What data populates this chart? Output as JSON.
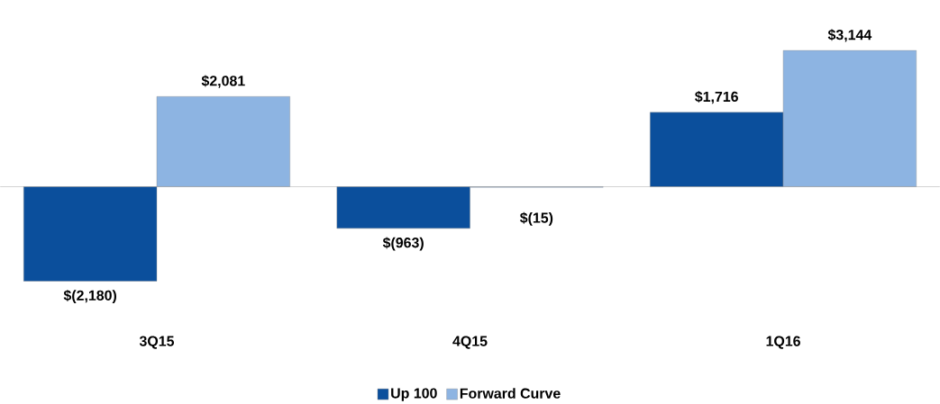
{
  "chart_data": {
    "type": "bar",
    "categories": [
      "3Q15",
      "4Q15",
      "1Q16"
    ],
    "series": [
      {
        "name": "Up 100",
        "color": "#0b4f9c",
        "values": [
          -2180,
          -963,
          1716
        ],
        "value_labels": [
          "$(2,180)",
          "$(963)",
          "$1,716"
        ]
      },
      {
        "name": "Forward Curve",
        "color": "#8db4e2",
        "values": [
          2081,
          -15,
          3144
        ],
        "value_labels": [
          "$2,081",
          "$(15)",
          "$3,144"
        ]
      }
    ],
    "legend": "bottom"
  }
}
